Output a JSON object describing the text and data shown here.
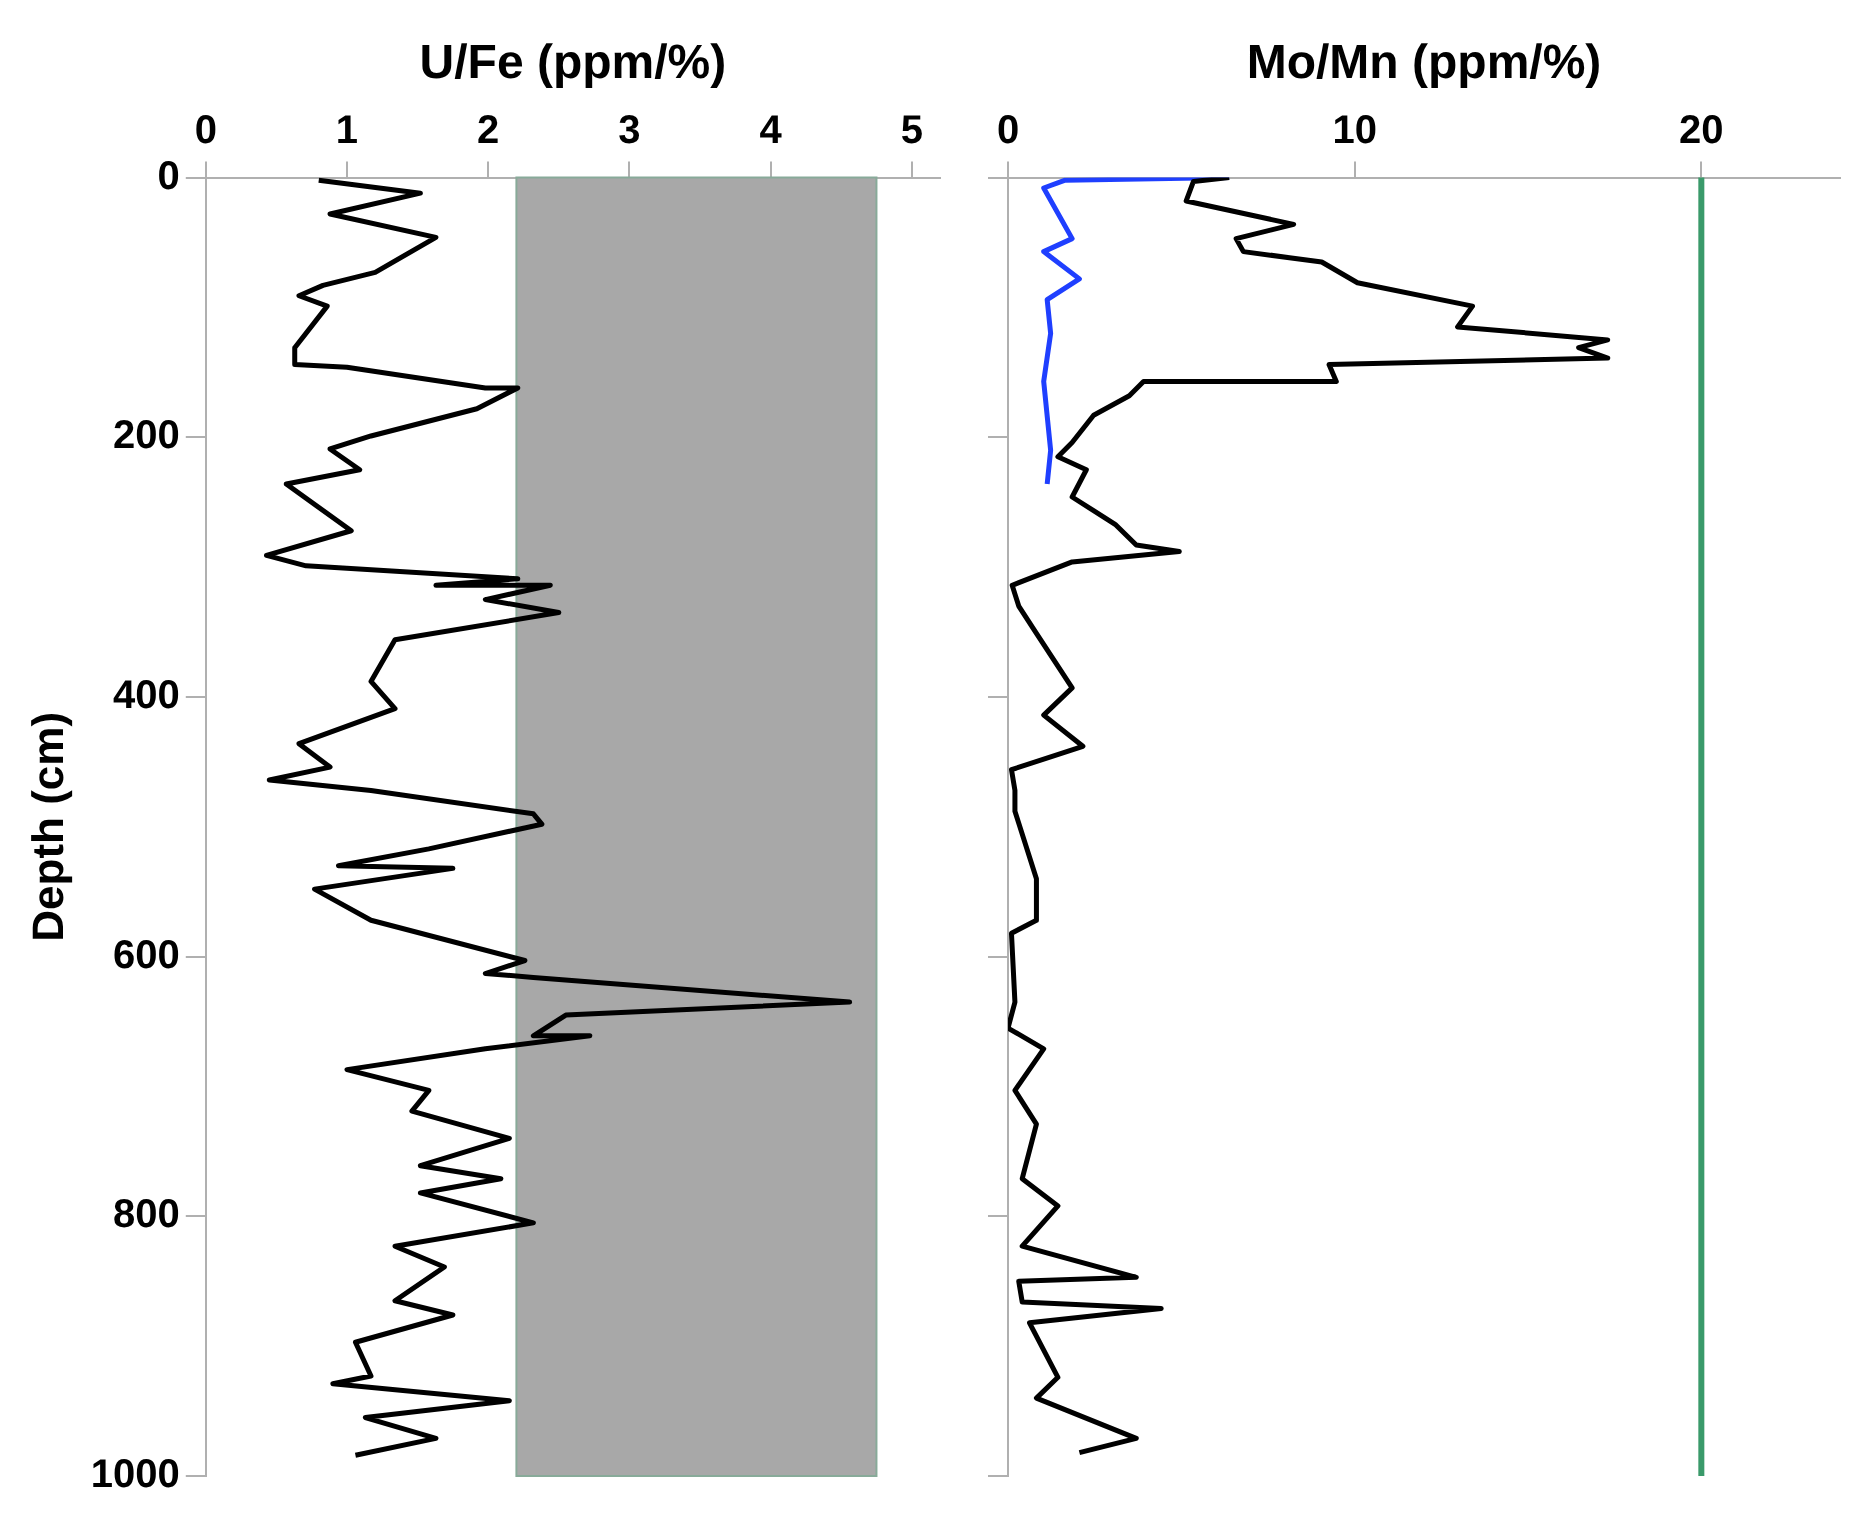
{
  "chart_data": [
    {
      "type": "line",
      "xlabel": "U/Fe (ppm/%)",
      "ylabel": "Depth (cm)",
      "xlim": [
        0,
        5.2
      ],
      "xticks": [
        0,
        1,
        2,
        3,
        4,
        5
      ],
      "ylim": [
        1000,
        0
      ],
      "yticks": [
        0,
        200,
        400,
        600,
        800,
        1000
      ],
      "grid": false,
      "legend": false,
      "marker": "none",
      "line_style": "solid",
      "bands": [
        {
          "axis": "x",
          "from": 2.2,
          "to": 4.75,
          "color": "#a8a8a8"
        }
      ],
      "series": [
        {
          "color": "#000000",
          "x": [
            0.8,
            1.52,
            0.88,
            1.63,
            1.2,
            0.83,
            0.66,
            0.86,
            0.63,
            0.63,
            1.0,
            1.98,
            2.21,
            1.92,
            1.17,
            0.88,
            1.09,
            0.57,
            1.03,
            0.43,
            0.71,
            2.21,
            1.63,
            2.44,
            1.98,
            2.5,
            1.34,
            1.17,
            1.34,
            0.66,
            0.88,
            0.45,
            1.17,
            2.32,
            2.38,
            1.58,
            0.94,
            1.75,
            0.77,
            1.17,
            2.26,
            1.98,
            2.32,
            4.56,
            2.55,
            2.32,
            2.72,
            1.98,
            1.0,
            1.58,
            1.46,
            2.15,
            1.52,
            2.09,
            1.52,
            2.32,
            1.34,
            1.69,
            1.34,
            1.75,
            1.06,
            1.17,
            0.9,
            2.15,
            1.13,
            1.63,
            1.06
          ],
          "values": [
            2,
            12,
            28,
            46,
            73,
            83,
            91,
            99,
            131,
            144,
            146,
            162,
            162,
            178,
            199,
            209,
            225,
            236,
            272,
            291,
            299,
            309,
            314,
            314,
            325,
            335,
            356,
            388,
            409,
            436,
            454,
            464,
            472,
            490,
            498,
            517,
            530,
            532,
            548,
            572,
            603,
            613,
            616,
            635,
            645,
            661,
            661,
            671,
            687,
            703,
            719,
            740,
            761,
            771,
            782,
            805,
            823,
            839,
            865,
            876,
            897,
            923,
            929,
            942,
            955,
            971,
            984
          ]
        }
      ]
    },
    {
      "type": "line",
      "xlabel": "Mo/Mn (ppm/%)",
      "xlim": [
        0,
        24
      ],
      "xticks": [
        0,
        10,
        20
      ],
      "ylim": [
        1000,
        0
      ],
      "yticks": [
        0,
        200,
        400,
        600,
        800,
        1000
      ],
      "tick_labels": "x",
      "grid": false,
      "legend": false,
      "marker": "none",
      "line_style": "solid",
      "ref_lines": [
        {
          "axis": "x",
          "value": 20,
          "color": "#3a9a6a"
        }
      ],
      "series": [
        {
          "color": "#000000",
          "x": [
            6.38,
            5.35,
            5.14,
            8.24,
            6.58,
            6.79,
            9.05,
            10.08,
            13.4,
            12.97,
            17.3,
            16.46,
            17.3,
            9.26,
            9.47,
            3.91,
            3.5,
            2.47,
            1.85,
            1.44,
            2.26,
            1.85,
            3.09,
            3.7,
            4.94,
            1.85,
            0.12,
            0.31,
            0.82,
            1.85,
            1.03,
            2.16,
            0.1,
            0.2,
            0.2,
            0.82,
            0.82,
            0.1,
            0.2,
            0,
            1.03,
            0.2,
            0.82,
            0.41,
            1.44,
            0.41,
            3.7,
            0.31,
            0.41,
            4.42,
            0.62,
            1.44,
            0.82,
            3.7,
            2.06
          ],
          "values": [
            0,
            3,
            18,
            36,
            47,
            57,
            65,
            81,
            99,
            115,
            125,
            131,
            139,
            144,
            157,
            157,
            168,
            183,
            204,
            215,
            225,
            246,
            267,
            283,
            288,
            296,
            314,
            330,
            351,
            393,
            414,
            438,
            456,
            472,
            488,
            540,
            572,
            582,
            635,
            655,
            671,
            703,
            729,
            771,
            792,
            823,
            847,
            850,
            866,
            871,
            882,
            924,
            940,
            971,
            982
          ]
        },
        {
          "color": "#1f3fff",
          "x": [
            6.38,
            1.65,
            1.03,
            1.85,
            1.03,
            2.06,
            1.13,
            1.23,
            1.03,
            1.23,
            1.13
          ],
          "values": [
            0,
            2,
            8,
            47,
            57,
            78,
            94,
            120,
            157,
            210,
            236
          ]
        }
      ]
    }
  ]
}
